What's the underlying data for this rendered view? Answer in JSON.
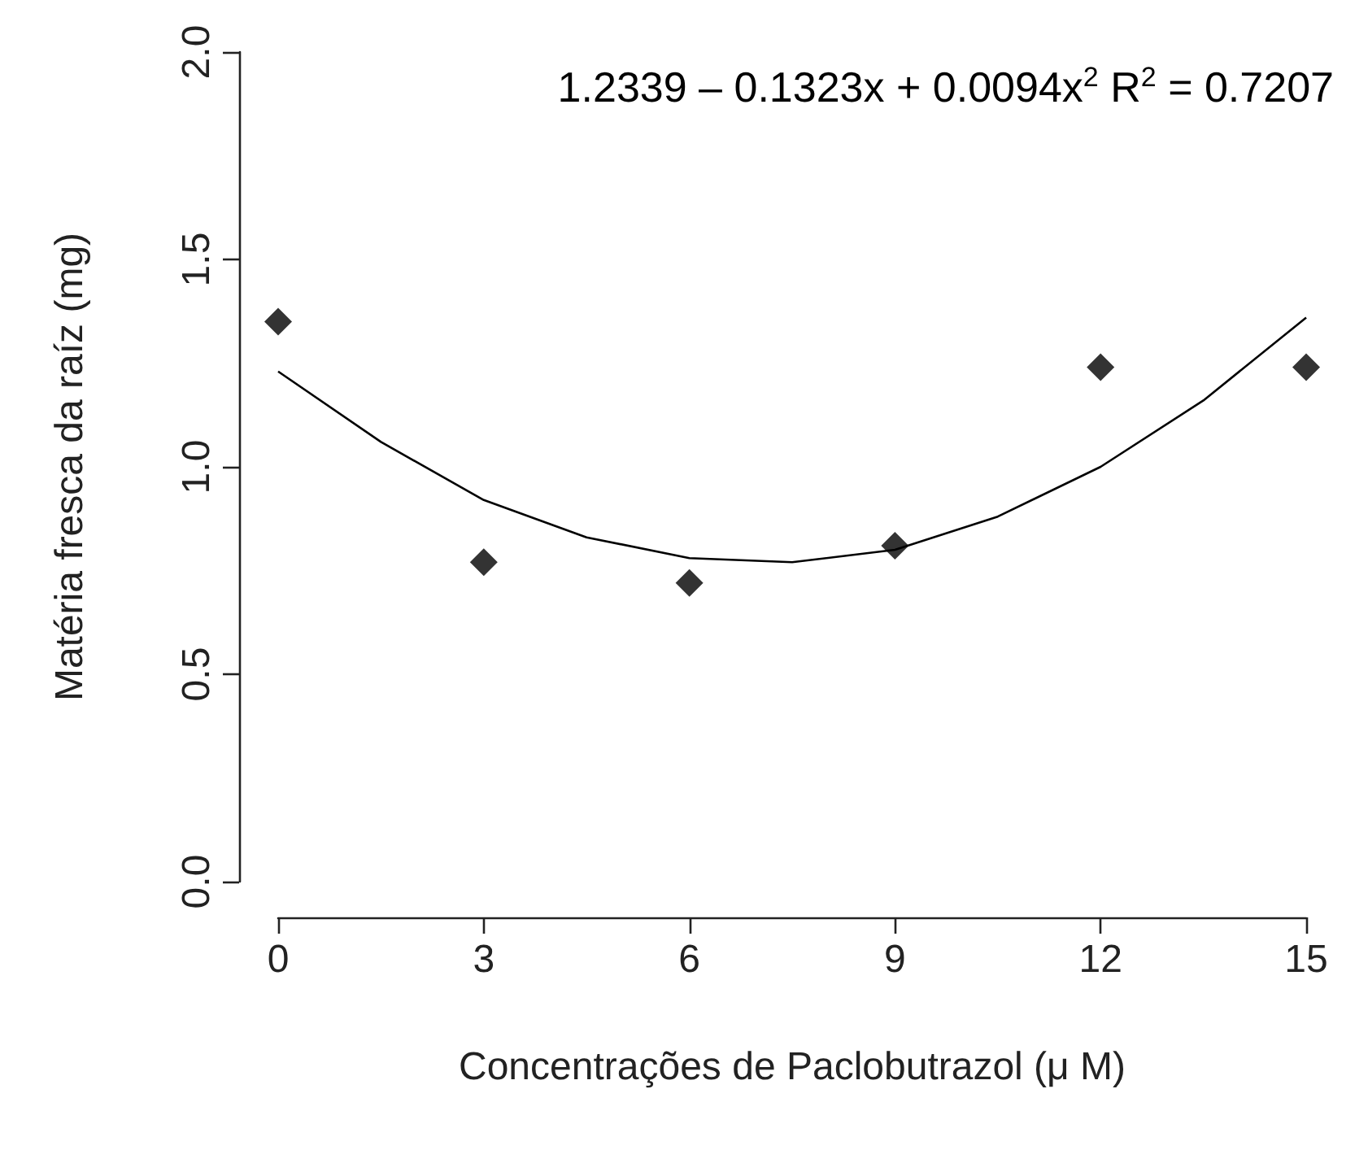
{
  "chart_data": {
    "type": "scatter",
    "xlabel": "Concentrações de Paclobutrazol (μ M)",
    "ylabel": "Matéria fresca da raíz (mg)",
    "annotations": [
      "1.2339 – 0.1323x + 0.0094x$^{2}$  R$^{2}$ = 0.7207"
    ],
    "x": [
      0,
      3,
      6,
      9,
      12,
      15
    ],
    "series": [
      {
        "color": "#000000",
        "values": [
          1.35,
          0.77,
          0.72,
          0.81,
          1.24,
          1.24
        ],
        "marker": "diamond"
      },
      {
        "type": "line",
        "color": "#000000",
        "marker": "none",
        "line_style": "solid",
        "x": [
          0,
          1.5,
          3,
          4.5,
          6,
          7.5,
          9,
          10.5,
          12,
          13.5,
          15
        ],
        "values": [
          1.23,
          1.06,
          0.92,
          0.83,
          0.78,
          0.77,
          0.8,
          0.88,
          1.0,
          1.16,
          1.36
        ]
      }
    ],
    "xlim": [
      0,
      15
    ],
    "xticks": [
      0,
      3,
      6,
      9,
      12,
      15
    ],
    "ylim": [
      0,
      2
    ],
    "yticks": [
      {
        "value": 0,
        "label": "0.0"
      },
      0.5,
      {
        "value": 1,
        "label": "1.0"
      },
      1.5,
      {
        "value": 2,
        "label": "2.0"
      }
    ],
    "grid": false
  }
}
